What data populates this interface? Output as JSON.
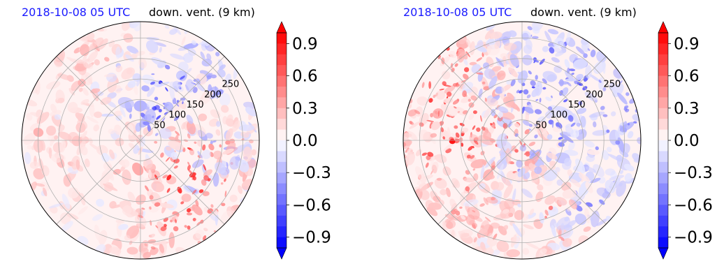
{
  "chart_data": [
    {
      "type": "polar-filled-contour",
      "title_left": "2018-10-08 05 UTC",
      "title_right": "down. vent. (9 km)",
      "title_left_color": "#1a1aff",
      "ring_labels": [
        "50",
        "100",
        "150",
        "200",
        "250"
      ],
      "rlim": [
        0,
        290
      ],
      "colorbar": {
        "ticks": [
          "0.9",
          "0.6",
          "0.3",
          "0.0",
          "−0.3",
          "−0.6",
          "−0.9"
        ],
        "tick_values": [
          0.9,
          0.6,
          0.3,
          0.0,
          -0.3,
          -0.6,
          -0.9
        ],
        "range": [
          -1.0,
          1.0
        ],
        "levels": 20,
        "colormap": "bwr",
        "extend": "both"
      },
      "colors": {
        "positive": "#ff0000",
        "negative": "#0000ff",
        "neutral": "#ffffff",
        "grid": "#b0b0b0"
      }
    },
    {
      "type": "polar-filled-contour",
      "title_left": "2018-10-08 05 UTC",
      "title_right": "down. vent. (9 km)",
      "title_left_color": "#1a1aff",
      "ring_labels": [
        "50",
        "100",
        "150",
        "200",
        "250"
      ],
      "rlim": [
        0,
        290
      ],
      "colorbar": {
        "ticks": [
          "0.9",
          "0.6",
          "0.3",
          "0.0",
          "−0.3",
          "−0.6",
          "−0.9"
        ],
        "tick_values": [
          0.9,
          0.6,
          0.3,
          0.0,
          -0.3,
          -0.6,
          -0.9
        ],
        "range": [
          -1.0,
          1.0
        ],
        "levels": 20,
        "colormap": "bwr",
        "extend": "both"
      },
      "colors": {
        "positive": "#ff0000",
        "negative": "#0000ff",
        "neutral": "#ffffff",
        "grid": "#b0b0b0"
      }
    }
  ]
}
